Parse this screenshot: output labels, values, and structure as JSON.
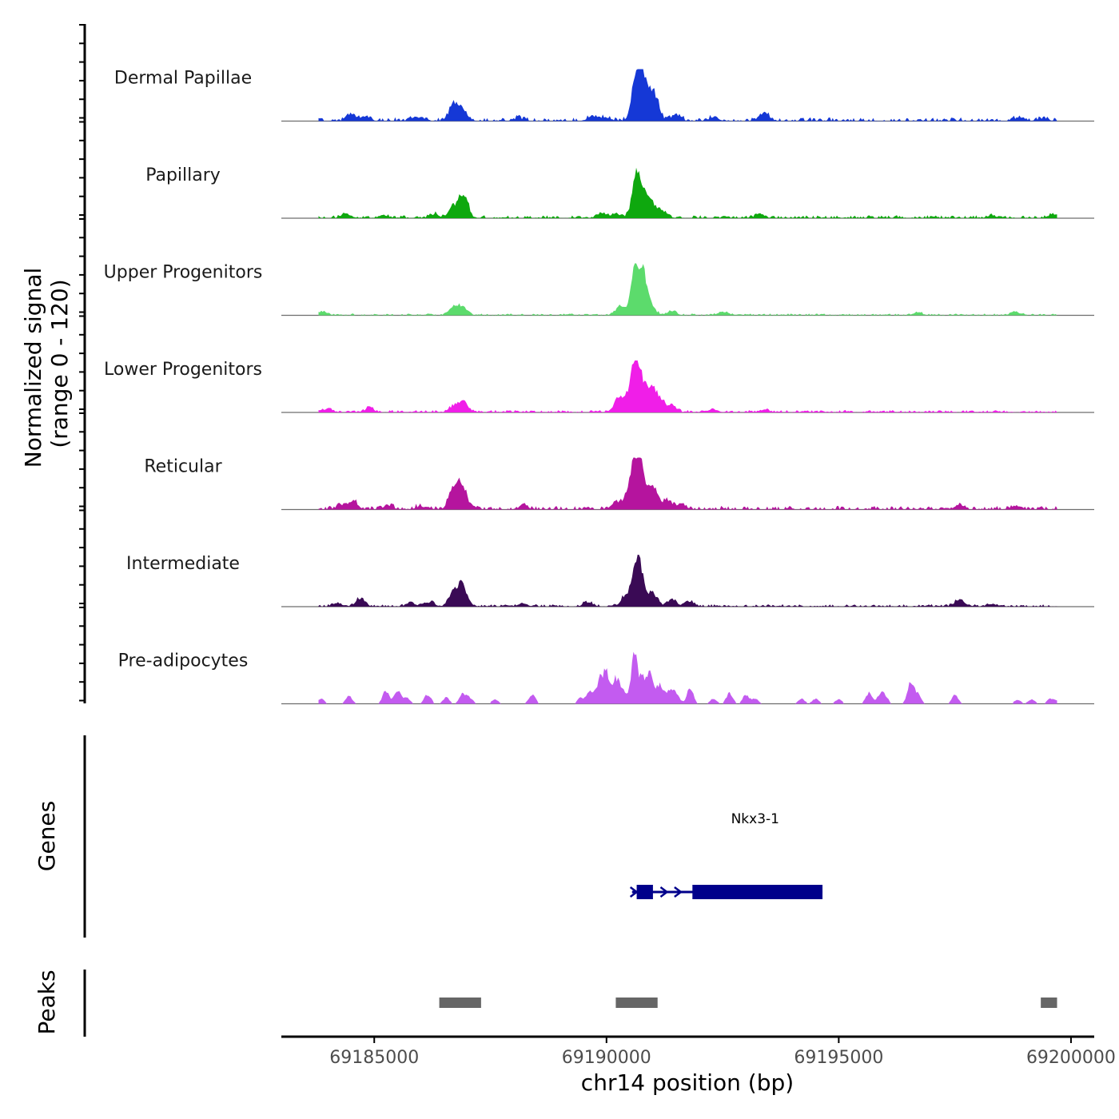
{
  "chart_data": {
    "type": "area",
    "chromosome": "chr14",
    "xlabel": "chr14 position (bp)",
    "ylabel_line1": "Normalized signal",
    "ylabel_line2": "(range 0 - 120)",
    "ylim": [
      0,
      120
    ],
    "xlim": [
      69183000,
      69200500
    ],
    "x_ticks": [
      69185000,
      69190000,
      69195000,
      69200000
    ],
    "x_tick_labels": [
      "69185000",
      "69190000",
      "69195000",
      "69200000"
    ],
    "signal_range": [
      69183800,
      69199700
    ],
    "series": [
      {
        "name": "Dermal Papillae",
        "color": "#1538D6",
        "base": 6,
        "peaks": [
          [
            69184500,
            14
          ],
          [
            69184800,
            10
          ],
          [
            69185900,
            9
          ],
          [
            69186700,
            34
          ],
          [
            69186900,
            28
          ],
          [
            69188100,
            6
          ],
          [
            69189700,
            11
          ],
          [
            69190000,
            8
          ],
          [
            69190650,
            120
          ],
          [
            69190760,
            62
          ],
          [
            69190900,
            48
          ],
          [
            69191050,
            44
          ],
          [
            69191500,
            14
          ],
          [
            69192300,
            8
          ],
          [
            69193400,
            20
          ],
          [
            69198900,
            9
          ],
          [
            69199400,
            6
          ]
        ]
      },
      {
        "name": "Papillary",
        "color": "#0EA80E",
        "base": 5,
        "peaks": [
          [
            69184400,
            10
          ],
          [
            69185200,
            7
          ],
          [
            69186300,
            8
          ],
          [
            69186700,
            26
          ],
          [
            69186920,
            55
          ],
          [
            69189900,
            10
          ],
          [
            69190200,
            10
          ],
          [
            69190650,
            100
          ],
          [
            69190800,
            34
          ],
          [
            69190970,
            32
          ],
          [
            69191200,
            15
          ],
          [
            69193300,
            9
          ],
          [
            69198300,
            6
          ],
          [
            69199600,
            8
          ]
        ]
      },
      {
        "name": "Upper Progenitors",
        "color": "#5CDB6C",
        "base": 3,
        "peaks": [
          [
            69183900,
            7
          ],
          [
            69186700,
            18
          ],
          [
            69186900,
            20
          ],
          [
            69190300,
            20
          ],
          [
            69190630,
            120
          ],
          [
            69190760,
            85
          ],
          [
            69190950,
            22
          ],
          [
            69191400,
            9
          ],
          [
            69192500,
            8
          ],
          [
            69196700,
            6
          ],
          [
            69198800,
            8
          ]
        ]
      },
      {
        "name": "Lower Progenitors",
        "color": "#F01EE8",
        "base": 4,
        "peaks": [
          [
            69184000,
            7
          ],
          [
            69184900,
            9
          ],
          [
            69186700,
            12
          ],
          [
            69186920,
            26
          ],
          [
            69190250,
            30
          ],
          [
            69190450,
            28
          ],
          [
            69190630,
            120
          ],
          [
            69190760,
            40
          ],
          [
            69190960,
            52
          ],
          [
            69191150,
            28
          ],
          [
            69191400,
            16
          ],
          [
            69192300,
            7
          ],
          [
            69193400,
            6
          ]
        ]
      },
      {
        "name": "Reticular",
        "color": "#B5149E",
        "base": 6,
        "peaks": [
          [
            69184300,
            9
          ],
          [
            69184550,
            18
          ],
          [
            69185300,
            9
          ],
          [
            69186000,
            7
          ],
          [
            69186700,
            45
          ],
          [
            69186900,
            55
          ],
          [
            69188200,
            7
          ],
          [
            69190200,
            18
          ],
          [
            69190450,
            26
          ],
          [
            69190640,
            120
          ],
          [
            69190760,
            55
          ],
          [
            69191000,
            50
          ],
          [
            69191300,
            22
          ],
          [
            69191600,
            12
          ],
          [
            69197600,
            10
          ],
          [
            69198800,
            8
          ]
        ]
      },
      {
        "name": "Intermediate",
        "color": "#3A0A55",
        "base": 4,
        "peaks": [
          [
            69184200,
            9
          ],
          [
            69184700,
            20
          ],
          [
            69185800,
            8
          ],
          [
            69186200,
            10
          ],
          [
            69186700,
            35
          ],
          [
            69186900,
            48
          ],
          [
            69188200,
            7
          ],
          [
            69189600,
            10
          ],
          [
            69190400,
            22
          ],
          [
            69190640,
            95
          ],
          [
            69190760,
            40
          ],
          [
            69191000,
            30
          ],
          [
            69191400,
            16
          ],
          [
            69191800,
            12
          ],
          [
            69197600,
            16
          ],
          [
            69198300,
            6
          ]
        ]
      },
      {
        "name": "Pre-adipocytes",
        "color": "#C35BF0",
        "sparse": true,
        "peaks": [
          [
            69183850,
            12
          ],
          [
            69184450,
            18
          ],
          [
            69185250,
            30
          ],
          [
            69185500,
            30
          ],
          [
            69185700,
            14
          ],
          [
            69186150,
            22
          ],
          [
            69186550,
            14
          ],
          [
            69186900,
            22
          ],
          [
            69187050,
            14
          ],
          [
            69187600,
            10
          ],
          [
            69188400,
            22
          ],
          [
            69189450,
            14
          ],
          [
            69189650,
            28
          ],
          [
            69189850,
            52
          ],
          [
            69190000,
            68
          ],
          [
            69190200,
            55
          ],
          [
            69190350,
            30
          ],
          [
            69190600,
            110
          ],
          [
            69190780,
            55
          ],
          [
            69190950,
            72
          ],
          [
            69191150,
            42
          ],
          [
            69191350,
            30
          ],
          [
            69191500,
            25
          ],
          [
            69191800,
            35
          ],
          [
            69192300,
            12
          ],
          [
            69192650,
            24
          ],
          [
            69193000,
            20
          ],
          [
            69193200,
            12
          ],
          [
            69194200,
            12
          ],
          [
            69194500,
            12
          ],
          [
            69195000,
            10
          ],
          [
            69195650,
            25
          ],
          [
            69195900,
            22
          ],
          [
            69196000,
            14
          ],
          [
            69196550,
            48
          ],
          [
            69196700,
            20
          ],
          [
            69197500,
            20
          ],
          [
            69198850,
            10
          ],
          [
            69199150,
            10
          ],
          [
            69199550,
            10
          ],
          [
            69199680,
            8
          ]
        ]
      }
    ],
    "genes": {
      "title": "Genes",
      "items": [
        {
          "name": "Nkx3-1",
          "start": 69190650,
          "end": 69194650,
          "strand": "+",
          "exons": [
            [
              69190650,
              69191000
            ],
            [
              69191850,
              69194650
            ]
          ],
          "arrow_positions": [
            69190600,
            69191250,
            69191550
          ]
        }
      ]
    },
    "peaks_track": {
      "title": "Peaks",
      "regions": [
        [
          69186400,
          69187300
        ],
        [
          69190200,
          69191100
        ],
        [
          69199350,
          69199700
        ]
      ]
    }
  }
}
